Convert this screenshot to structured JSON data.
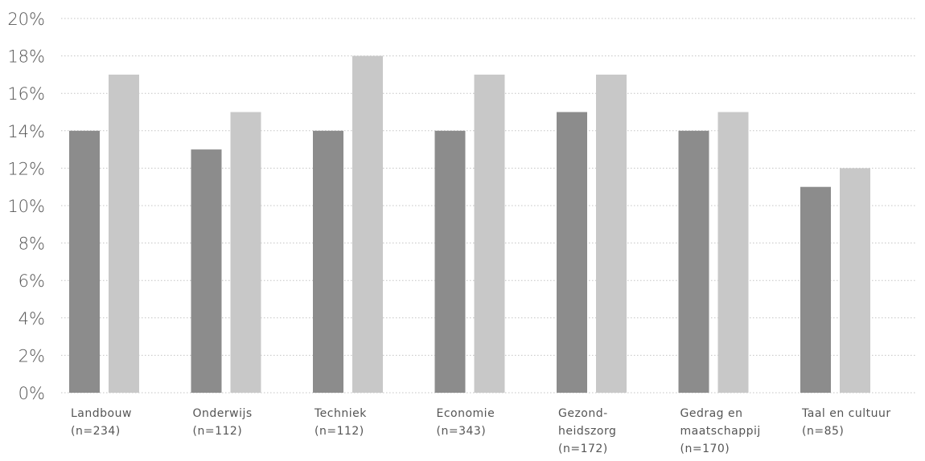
{
  "chart_data": {
    "type": "bar",
    "title": "",
    "xlabel": "",
    "ylabel": "",
    "ylim": [
      0,
      20
    ],
    "yticks": [
      "0%",
      "2%",
      "4%",
      "6%",
      "8%",
      "10%",
      "12%",
      "14%",
      "16%",
      "18%",
      "20%"
    ],
    "grid": true,
    "categories": [
      [
        "Landbouw",
        "(n=234)"
      ],
      [
        "Onderwijs",
        "(n=112)"
      ],
      [
        "Techniek",
        "(n=112)"
      ],
      [
        "Economie",
        "(n=343)"
      ],
      [
        "Gezond-",
        "heidszorg",
        "(n=172)"
      ],
      [
        "Gedrag en",
        "maatschappij",
        "(n=170)"
      ],
      [
        "Taal en cultuur",
        "(n=85)"
      ]
    ],
    "series": [
      {
        "values": [
          14,
          13,
          14,
          14,
          15,
          14,
          11
        ],
        "color": "#8c8c8c"
      },
      {
        "values": [
          17,
          15,
          18,
          17,
          17,
          15,
          12
        ],
        "color": "#c8c8c8"
      }
    ]
  }
}
